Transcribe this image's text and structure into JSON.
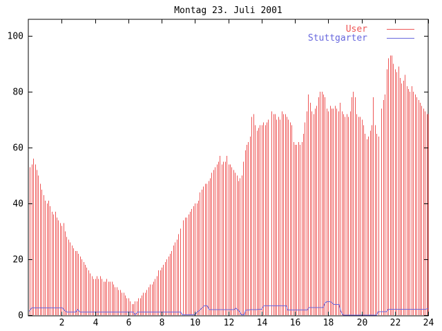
{
  "window": {
    "background": "#ffffff",
    "title": ""
  },
  "chart_data": {
    "type": "bar",
    "title": "Montag 23. Juli 2001",
    "xlabel": "",
    "ylabel": "",
    "xlim": [
      0,
      24
    ],
    "ylim": [
      0,
      106
    ],
    "x_ticks": [
      2,
      4,
      6,
      8,
      10,
      12,
      14,
      16,
      18,
      20,
      22,
      24
    ],
    "y_ticks": [
      0,
      20,
      40,
      60,
      80,
      100
    ],
    "grid": false,
    "legend_position": "top-right-inside",
    "axis_color": "#000000",
    "background_color": "#ffffff",
    "series": [
      {
        "name": "User",
        "type": "impulses",
        "color": "#ee5555",
        "x_start": 0.1,
        "x_step": 0.1,
        "values": [
          53,
          54,
          56,
          54,
          52,
          50,
          47,
          45,
          43,
          41,
          40,
          41,
          39,
          37,
          36,
          37,
          35,
          34,
          33,
          32,
          33,
          30,
          28,
          27,
          26,
          25,
          24,
          23,
          23,
          22,
          21,
          20,
          19,
          18,
          17,
          16,
          15,
          14,
          13,
          13,
          14,
          13,
          14,
          13,
          12,
          12,
          13,
          12,
          12,
          12,
          11,
          10,
          10,
          9,
          9,
          8,
          8,
          7,
          6,
          6,
          5,
          4,
          4,
          5,
          5,
          6,
          6,
          7,
          8,
          8,
          9,
          10,
          11,
          11,
          12,
          13,
          14,
          16,
          16,
          17,
          18,
          19,
          20,
          21,
          22,
          23,
          25,
          26,
          27,
          29,
          31,
          0,
          34,
          35,
          35,
          36,
          37,
          38,
          39,
          40,
          40,
          41,
          44,
          45,
          46,
          47,
          47,
          48,
          49,
          51,
          52,
          53,
          54,
          55,
          57,
          54,
          55,
          55,
          57,
          54,
          54,
          53,
          52,
          51,
          50,
          48,
          49,
          50,
          55,
          59,
          61,
          62,
          64,
          71,
          72,
          68,
          66,
          67,
          68,
          68,
          69,
          68,
          69,
          70,
          0,
          73,
          72,
          72,
          70,
          71,
          70,
          73,
          72,
          72,
          71,
          70,
          69,
          68,
          62,
          61,
          61,
          62,
          61,
          62,
          65,
          69,
          73,
          79,
          76,
          73,
          72,
          74,
          75,
          78,
          80,
          80,
          79,
          78,
          74,
          73,
          75,
          74,
          74,
          75,
          74,
          73,
          76,
          73,
          72,
          71,
          72,
          71,
          73,
          78,
          80,
          78,
          72,
          71,
          71,
          70,
          68,
          65,
          63,
          64,
          66,
          68,
          78,
          68,
          65,
          64,
          0,
          74,
          77,
          79,
          88,
          92,
          93,
          93,
          90,
          88,
          87,
          89,
          85,
          83,
          84,
          86,
          82,
          81,
          80,
          82,
          80,
          79,
          78,
          77,
          76,
          75,
          74,
          73,
          72,
          72
        ]
      },
      {
        "name": "Stuttgarter",
        "type": "line",
        "color": "#6666dd",
        "points": [
          [
            0.05,
            1.5
          ],
          [
            0.2,
            2.7
          ],
          [
            2.05,
            2.7
          ],
          [
            2.15,
            2.0
          ],
          [
            2.3,
            1.2
          ],
          [
            2.85,
            1.2
          ],
          [
            2.95,
            2.2
          ],
          [
            3.1,
            1.2
          ],
          [
            6.3,
            1.2
          ],
          [
            6.4,
            0.2
          ],
          [
            6.55,
            1.2
          ],
          [
            9.15,
            1.2
          ],
          [
            9.25,
            0.2
          ],
          [
            10.0,
            0.2
          ],
          [
            10.1,
            1.0
          ],
          [
            10.3,
            2.0
          ],
          [
            10.45,
            2.8
          ],
          [
            10.55,
            3.4
          ],
          [
            10.75,
            3.4
          ],
          [
            10.85,
            2.1
          ],
          [
            12.35,
            2.1
          ],
          [
            12.45,
            2.6
          ],
          [
            12.6,
            1.9
          ],
          [
            12.7,
            1.2
          ],
          [
            12.8,
            0.2
          ],
          [
            12.95,
            0.2
          ],
          [
            13.05,
            1.9
          ],
          [
            13.4,
            2.1
          ],
          [
            14.0,
            2.2
          ],
          [
            14.05,
            2.9
          ],
          [
            14.15,
            3.5
          ],
          [
            15.5,
            3.5
          ],
          [
            15.55,
            2.0
          ],
          [
            16.75,
            2.0
          ],
          [
            16.85,
            2.9
          ],
          [
            17.7,
            2.9
          ],
          [
            17.8,
            4.4
          ],
          [
            17.9,
            4.9
          ],
          [
            18.15,
            4.9
          ],
          [
            18.25,
            4.4
          ],
          [
            18.35,
            3.9
          ],
          [
            18.65,
            3.9
          ],
          [
            18.75,
            1.6
          ],
          [
            18.9,
            0.1
          ],
          [
            20.9,
            0.1
          ],
          [
            21.0,
            1.4
          ],
          [
            21.5,
            1.4
          ],
          [
            21.6,
            2.2
          ],
          [
            23.85,
            2.2
          ],
          [
            23.95,
            2.5
          ],
          [
            24.0,
            2.5
          ]
        ]
      }
    ]
  }
}
